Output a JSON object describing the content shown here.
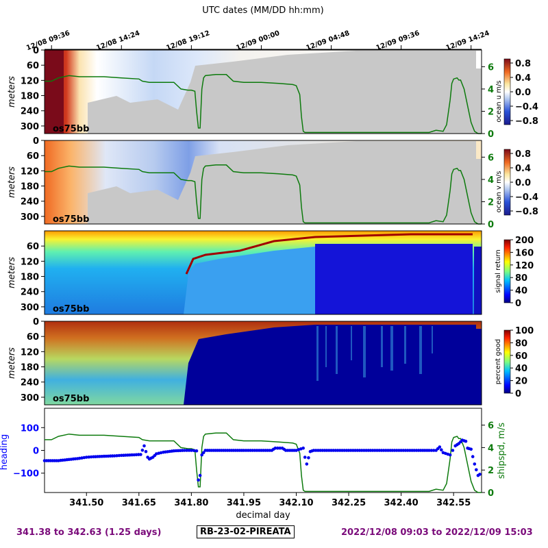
{
  "figure": {
    "top_title": "UTC dates (MM/DD hh:mm)",
    "top_ticks": [
      "12/08 09:36",
      "12/08 14:24",
      "12/08 19:12",
      "12/09 00:00",
      "12/09 04:48",
      "12/09 09:36",
      "12/09 14:24"
    ],
    "xlabel": "decimal day",
    "footer_left": "341.38 to 342.63 (1.25 days)",
    "footer_center": "RB-23-02-PIREATA",
    "footer_right": "2022/12/08 09:03 to 2022/12/09 15:03"
  },
  "chart_data": [
    {
      "type": "heatmap",
      "panel": "ocean_u",
      "ylabel": "meters",
      "y_ticks": [
        "0",
        "60",
        "120",
        "180",
        "240",
        "300"
      ],
      "inset_label": "os75bb",
      "colorbar_label": "ocean u m/s",
      "colorbar_ticks": [
        "0.8",
        "0.4",
        "0.0",
        "−0.4",
        "−0.8"
      ],
      "right_axis_ticks": [
        "0",
        "2",
        "4",
        "6"
      ],
      "overlay_series": "shipspd"
    },
    {
      "type": "heatmap",
      "panel": "ocean_v",
      "ylabel": "meters",
      "y_ticks": [
        "0",
        "60",
        "120",
        "180",
        "240",
        "300"
      ],
      "inset_label": "os75bb",
      "colorbar_label": "ocean v m/s",
      "colorbar_ticks": [
        "0.8",
        "0.4",
        "0.0",
        "−0.4",
        "−0.8"
      ],
      "right_axis_ticks": [
        "0",
        "2",
        "4",
        "6"
      ],
      "overlay_series": "shipspd"
    },
    {
      "type": "heatmap",
      "panel": "signal_return",
      "ylabel": "meters",
      "y_ticks": [
        "60",
        "120",
        "180",
        "240",
        "300"
      ],
      "inset_label": "os75bb",
      "colorbar_label": "signal return",
      "colorbar_ticks": [
        "200",
        "160",
        "120",
        "80",
        "40",
        "0"
      ]
    },
    {
      "type": "heatmap",
      "panel": "percent_good",
      "ylabel": "meters",
      "y_ticks": [
        "0",
        "60",
        "120",
        "180",
        "240",
        "300"
      ],
      "inset_label": "os75bb",
      "colorbar_label": "percent good",
      "colorbar_ticks": [
        "100",
        "80",
        "60",
        "40",
        "20",
        "0"
      ]
    },
    {
      "type": "scatter",
      "panel": "heading_shipspd",
      "left_label": "heading",
      "right_label": "shipspd, m/s",
      "left_ticks": [
        "100",
        "0",
        "−100"
      ],
      "right_ticks": [
        "0",
        "2",
        "4",
        "6"
      ],
      "x_ticks": [
        "341.50",
        "341.65",
        "341.80",
        "341.95",
        "342.10",
        "342.25",
        "342.40",
        "342.55"
      ],
      "xlim": [
        341.38,
        342.63
      ],
      "heading_ylim": [
        -185,
        185
      ],
      "shipspd_ylim": [
        0,
        7.5
      ],
      "heading": [
        [
          341.38,
          -45
        ],
        [
          341.42,
          -45
        ],
        [
          341.45,
          -40
        ],
        [
          341.48,
          -35
        ],
        [
          341.5,
          -30
        ],
        [
          341.52,
          -28
        ],
        [
          341.55,
          -26
        ],
        [
          341.58,
          -24
        ],
        [
          341.6,
          -22
        ],
        [
          341.63,
          -20
        ],
        [
          341.655,
          -18
        ],
        [
          341.665,
          20
        ],
        [
          341.67,
          -5
        ],
        [
          341.675,
          -30
        ],
        [
          341.68,
          -38
        ],
        [
          341.69,
          -30
        ],
        [
          341.7,
          -15
        ],
        [
          341.72,
          -8
        ],
        [
          341.75,
          -2
        ],
        [
          341.78,
          0
        ],
        [
          341.8,
          0
        ],
        [
          341.815,
          -2
        ],
        [
          341.82,
          -130
        ],
        [
          341.825,
          -110
        ],
        [
          341.83,
          -20
        ],
        [
          341.84,
          0
        ],
        [
          341.88,
          0
        ],
        [
          341.95,
          0
        ],
        [
          342.0,
          0
        ],
        [
          342.03,
          0
        ],
        [
          342.04,
          10
        ],
        [
          342.06,
          10
        ],
        [
          342.07,
          0
        ],
        [
          342.1,
          0
        ],
        [
          342.12,
          10
        ],
        [
          342.125,
          -30
        ],
        [
          342.13,
          -60
        ],
        [
          342.14,
          -5
        ],
        [
          342.15,
          0
        ],
        [
          342.2,
          0
        ],
        [
          342.25,
          0
        ],
        [
          342.3,
          0
        ],
        [
          342.35,
          0
        ],
        [
          342.4,
          0
        ],
        [
          342.45,
          0
        ],
        [
          342.48,
          0
        ],
        [
          342.5,
          0
        ],
        [
          342.51,
          15
        ],
        [
          342.52,
          -10
        ],
        [
          342.54,
          -20
        ],
        [
          342.555,
          20
        ],
        [
          342.565,
          30
        ],
        [
          342.575,
          45
        ],
        [
          342.585,
          40
        ],
        [
          342.59,
          10
        ],
        [
          342.6,
          5
        ],
        [
          342.61,
          -60
        ],
        [
          342.62,
          -110
        ],
        [
          342.63,
          -100
        ]
      ],
      "shipspd": [
        [
          341.38,
          4.7
        ],
        [
          341.4,
          4.7
        ],
        [
          341.42,
          5.0
        ],
        [
          341.45,
          5.2
        ],
        [
          341.48,
          5.1
        ],
        [
          341.5,
          5.1
        ],
        [
          341.55,
          5.1
        ],
        [
          341.6,
          5.0
        ],
        [
          341.65,
          4.9
        ],
        [
          341.66,
          4.7
        ],
        [
          341.68,
          4.6
        ],
        [
          341.7,
          4.6
        ],
        [
          341.75,
          4.6
        ],
        [
          341.77,
          4.0
        ],
        [
          341.79,
          3.9
        ],
        [
          341.8,
          3.9
        ],
        [
          341.81,
          3.8
        ],
        [
          341.815,
          2.0
        ],
        [
          341.82,
          0.5
        ],
        [
          341.825,
          0.5
        ],
        [
          341.83,
          4.0
        ],
        [
          341.835,
          5.0
        ],
        [
          341.84,
          5.2
        ],
        [
          341.87,
          5.3
        ],
        [
          341.9,
          5.3
        ],
        [
          341.92,
          4.7
        ],
        [
          341.95,
          4.6
        ],
        [
          342.0,
          4.6
        ],
        [
          342.05,
          4.5
        ],
        [
          342.09,
          4.4
        ],
        [
          342.1,
          4.3
        ],
        [
          342.11,
          3.5
        ],
        [
          342.115,
          1.5
        ],
        [
          342.12,
          0.2
        ],
        [
          342.125,
          0.1
        ],
        [
          342.2,
          0.1
        ],
        [
          342.3,
          0.1
        ],
        [
          342.4,
          0.1
        ],
        [
          342.48,
          0.1
        ],
        [
          342.5,
          0.3
        ],
        [
          342.52,
          0.2
        ],
        [
          342.53,
          0.8
        ],
        [
          342.54,
          3.0
        ],
        [
          342.545,
          4.5
        ],
        [
          342.55,
          4.9
        ],
        [
          342.56,
          5.0
        ],
        [
          342.565,
          4.8
        ],
        [
          342.57,
          4.8
        ],
        [
          342.58,
          4.0
        ],
        [
          342.59,
          2.5
        ],
        [
          342.6,
          1.0
        ],
        [
          342.61,
          0.2
        ],
        [
          342.62,
          0.0
        ],
        [
          342.63,
          0.0
        ]
      ]
    }
  ]
}
